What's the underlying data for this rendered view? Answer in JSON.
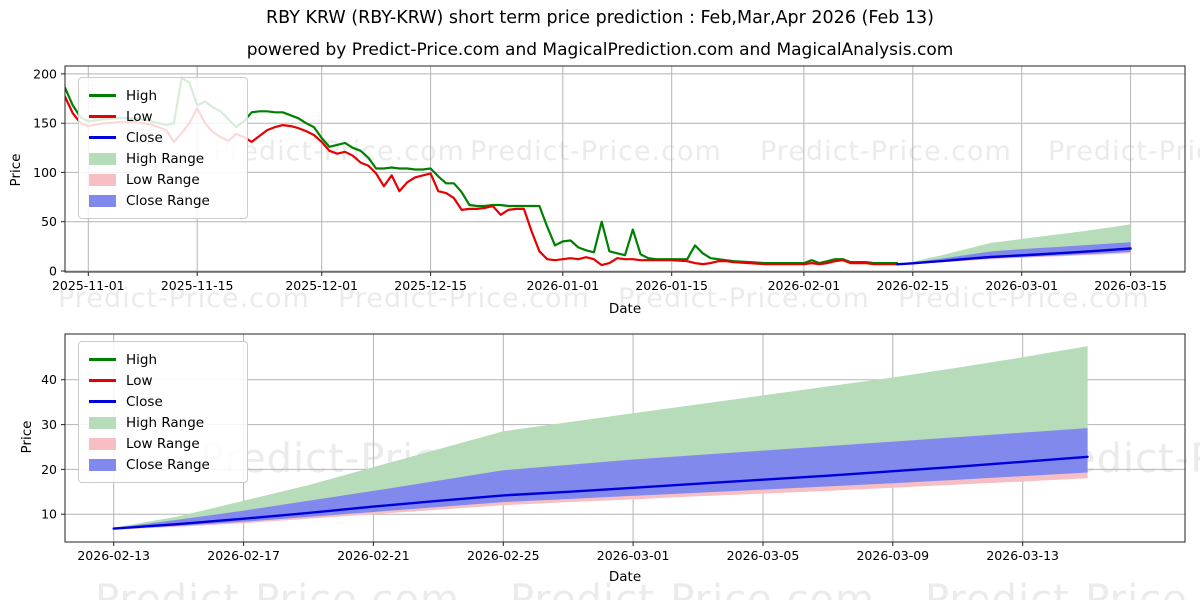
{
  "page": {
    "title": "RBY KRW (RBY-KRW) short term price prediction : Feb,Mar,Apr 2026 (Feb 13)",
    "subtitle": "powered by Predict-Price.com and MagicalPrediction.com and MagicalAnalysis.com",
    "watermark": "Predict-Price.com",
    "background": "#ffffff"
  },
  "colors": {
    "high": "#008000",
    "low": "#e60000",
    "close": "#0000dd",
    "high_range": "#b7dcb9",
    "low_range": "#f7bfc3",
    "close_range": "#8289ec",
    "grid": "#b4b4b4",
    "frame": "#222222",
    "watermark": "#ebebeb",
    "text": "#000000"
  },
  "legend": {
    "items": [
      {
        "label": "High",
        "swatch": "line",
        "color_key": "high"
      },
      {
        "label": "Low",
        "swatch": "line",
        "color_key": "low"
      },
      {
        "label": "Close",
        "swatch": "line",
        "color_key": "close"
      },
      {
        "label": "High Range",
        "swatch": "patch",
        "color_key": "high_range"
      },
      {
        "label": "Low Range",
        "swatch": "patch",
        "color_key": "low_range"
      },
      {
        "label": "Close Range",
        "swatch": "patch",
        "color_key": "close_range"
      }
    ]
  },
  "history": {
    "dates": [
      "2025-10-29",
      "2025-10-30",
      "2025-10-31",
      "2025-11-01",
      "2025-11-03",
      "2025-11-05",
      "2025-11-07",
      "2025-11-09",
      "2025-11-11",
      "2025-11-12",
      "2025-11-13",
      "2025-11-14",
      "2025-11-15",
      "2025-11-16",
      "2025-11-17",
      "2025-11-18",
      "2025-11-19",
      "2025-11-20",
      "2025-11-21",
      "2025-11-22",
      "2025-11-23",
      "2025-11-24",
      "2025-11-25",
      "2025-11-26",
      "2025-11-27",
      "2025-11-28",
      "2025-11-29",
      "2025-11-30",
      "2025-12-01",
      "2025-12-02",
      "2025-12-03",
      "2025-12-04",
      "2025-12-05",
      "2025-12-06",
      "2025-12-07",
      "2025-12-08",
      "2025-12-09",
      "2025-12-10",
      "2025-12-11",
      "2025-12-12",
      "2025-12-13",
      "2025-12-14",
      "2025-12-15",
      "2025-12-16",
      "2025-12-17",
      "2025-12-18",
      "2025-12-19",
      "2025-12-20",
      "2025-12-21",
      "2025-12-22",
      "2025-12-23",
      "2025-12-24",
      "2025-12-25",
      "2025-12-26",
      "2025-12-27",
      "2025-12-28",
      "2025-12-29",
      "2025-12-30",
      "2025-12-31",
      "2026-01-01",
      "2026-01-02",
      "2026-01-03",
      "2026-01-04",
      "2026-01-05",
      "2026-01-06",
      "2026-01-07",
      "2026-01-08",
      "2026-01-09",
      "2026-01-10",
      "2026-01-11",
      "2026-01-12",
      "2026-01-13",
      "2026-01-14",
      "2026-01-15",
      "2026-01-17",
      "2026-01-18",
      "2026-01-19",
      "2026-01-20",
      "2026-01-21",
      "2026-01-22",
      "2026-01-23",
      "2026-01-25",
      "2026-01-27",
      "2026-01-29",
      "2026-01-31",
      "2026-02-01",
      "2026-02-02",
      "2026-02-03",
      "2026-02-04",
      "2026-02-05",
      "2026-02-06",
      "2026-02-07",
      "2026-02-09",
      "2026-02-10",
      "2026-02-11",
      "2026-02-13"
    ],
    "high": [
      186,
      168,
      156,
      152,
      154,
      155,
      155,
      152,
      148,
      150,
      196,
      191,
      168,
      172,
      166,
      162,
      154,
      146,
      152,
      161,
      162,
      162,
      161,
      161,
      158,
      155,
      150,
      146,
      135,
      126,
      128,
      130,
      125,
      122,
      115,
      104,
      104,
      105,
      104,
      104,
      103,
      103,
      104,
      96,
      89,
      89,
      80,
      67,
      66,
      66,
      67,
      67,
      66,
      66,
      66,
      66,
      66,
      45,
      26,
      30,
      31,
      24,
      21,
      19,
      50,
      20,
      18,
      16,
      42,
      17,
      13,
      12,
      12,
      12,
      12,
      26,
      18,
      13,
      12,
      11,
      10,
      9,
      8,
      8,
      8,
      8,
      11,
      8,
      10,
      12,
      12,
      9,
      9,
      8,
      8,
      8
    ],
    "low": [
      177,
      160,
      150,
      147,
      150,
      151,
      151,
      149,
      143,
      131,
      140,
      150,
      165,
      150,
      141,
      136,
      132,
      139,
      136,
      131,
      137,
      143,
      146,
      148,
      147,
      145,
      142,
      138,
      131,
      122,
      119,
      121,
      117,
      110,
      107,
      99,
      86,
      97,
      81,
      90,
      95,
      97,
      99,
      81,
      79,
      74,
      62,
      63,
      63,
      64,
      66,
      57,
      62,
      63,
      63,
      40,
      20,
      12,
      11,
      12,
      13,
      12,
      14,
      12,
      6,
      8,
      13,
      12,
      12,
      11,
      11,
      11,
      11,
      11,
      10,
      8,
      7,
      8,
      10,
      10,
      9,
      8,
      7,
      7,
      7,
      7,
      8,
      7,
      8,
      10,
      11,
      8,
      8,
      7,
      7,
      7
    ]
  },
  "forecast": {
    "dates": [
      "2026-02-13",
      "2026-02-15",
      "2026-02-17",
      "2026-02-19",
      "2026-02-21",
      "2026-02-23",
      "2026-02-25",
      "2026-02-27",
      "2026-03-01",
      "2026-03-03",
      "2026-03-05",
      "2026-03-07",
      "2026-03-09",
      "2026-03-11",
      "2026-03-13",
      "2026-03-15"
    ],
    "close": [
      6.8,
      7.8,
      9.0,
      10.3,
      11.7,
      13.0,
      14.2,
      15.0,
      15.9,
      16.8,
      17.7,
      18.6,
      19.6,
      20.6,
      21.7,
      22.8
    ],
    "high_upper": [
      7.0,
      9.5,
      13.0,
      16.5,
      20.5,
      24.5,
      28.5,
      30.5,
      32.5,
      34.5,
      36.5,
      38.5,
      40.5,
      42.7,
      45.0,
      47.5
    ],
    "close_upper": [
      6.9,
      8.8,
      10.8,
      13.0,
      15.2,
      17.5,
      19.8,
      21.0,
      22.2,
      23.2,
      24.2,
      25.2,
      26.2,
      27.2,
      28.2,
      29.2
    ],
    "close_lower": [
      6.6,
      7.4,
      8.3,
      9.4,
      10.5,
      11.6,
      12.7,
      13.4,
      14.1,
      14.8,
      15.5,
      16.2,
      16.9,
      17.7,
      18.5,
      19.3
    ],
    "low_lower": [
      6.5,
      7.2,
      8.0,
      9.0,
      10.0,
      11.0,
      12.0,
      12.7,
      13.3,
      14.0,
      14.6,
      15.2,
      15.9,
      16.6,
      17.3,
      18.0
    ]
  },
  "chart_data": [
    {
      "type": "line",
      "title": "history + forecast overview",
      "xlabel": "Date",
      "ylabel": "Price",
      "grid": true,
      "legend_position": "upper left",
      "xlim": [
        "2025-10-29",
        "2026-03-22"
      ],
      "ylim": [
        -1,
        208
      ],
      "x_ticks": [
        "2025-11-01",
        "2025-11-15",
        "2025-12-01",
        "2025-12-15",
        "2026-01-01",
        "2026-01-15",
        "2026-02-01",
        "2026-02-15",
        "2026-03-01",
        "2026-03-15"
      ],
      "y_ticks": [
        0,
        50,
        100,
        150,
        200
      ],
      "series": [
        {
          "name": "High",
          "color_key": "high",
          "source": "history",
          "x_field": "dates",
          "y_field": "high",
          "width": 2.2
        },
        {
          "name": "Low",
          "color_key": "low",
          "source": "history",
          "x_field": "dates",
          "y_field": "low",
          "width": 2.2
        },
        {
          "name": "Close",
          "color_key": "close",
          "source": "forecast",
          "x_field": "dates",
          "y_field": "close",
          "width": 2.4
        }
      ],
      "bands": [
        {
          "name": "High Range",
          "color_key": "high_range",
          "source": "forecast",
          "x_field": "dates",
          "upper_field": "high_upper",
          "lower_field": "close"
        },
        {
          "name": "Low Range",
          "color_key": "low_range",
          "source": "forecast",
          "x_field": "dates",
          "upper_field": "close",
          "lower_field": "low_lower"
        },
        {
          "name": "Close Range",
          "color_key": "close_range",
          "source": "forecast",
          "x_field": "dates",
          "upper_field": "close_upper",
          "lower_field": "close_lower"
        }
      ]
    },
    {
      "type": "line",
      "title": "forecast detail",
      "xlabel": "Date",
      "ylabel": "Price",
      "grid": true,
      "legend_position": "upper left",
      "xlim": [
        "2026-02-11T12:00:00Z",
        "2026-03-18"
      ],
      "ylim": [
        3.8,
        50.2
      ],
      "x_ticks": [
        "2026-02-13",
        "2026-02-17",
        "2026-02-21",
        "2026-02-25",
        "2026-03-01",
        "2026-03-05",
        "2026-03-09",
        "2026-03-13"
      ],
      "y_ticks": [
        10,
        20,
        30,
        40
      ],
      "series": [
        {
          "name": "Close",
          "color_key": "close",
          "source": "forecast",
          "x_field": "dates",
          "y_field": "close",
          "width": 2.4
        }
      ],
      "bands": [
        {
          "name": "High Range",
          "color_key": "high_range",
          "source": "forecast",
          "x_field": "dates",
          "upper_field": "high_upper",
          "lower_field": "close"
        },
        {
          "name": "Low Range",
          "color_key": "low_range",
          "source": "forecast",
          "x_field": "dates",
          "upper_field": "close",
          "lower_field": "low_lower"
        },
        {
          "name": "Close Range",
          "color_key": "close_range",
          "source": "forecast",
          "x_field": "dates",
          "upper_field": "close_upper",
          "lower_field": "close_lower"
        }
      ]
    }
  ]
}
